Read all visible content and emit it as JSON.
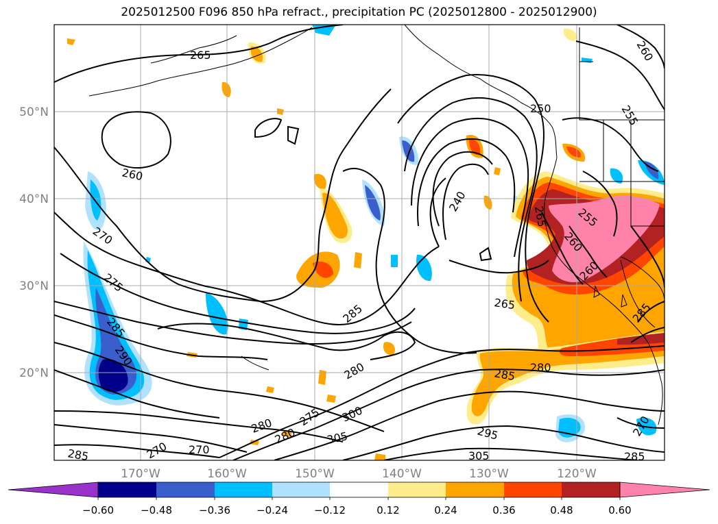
{
  "title": "2025012500 F096 850 hPa refract., precipitation PC (2025012800 - 2025012900)",
  "axes": {
    "lat_labels": [
      "50°N",
      "40°N",
      "30°N",
      "20°N"
    ],
    "lon_labels": [
      "170°W",
      "160°W",
      "150°W",
      "140°W",
      "130°W",
      "120°W"
    ],
    "label_color": "#808080"
  },
  "colorbar": {
    "ticks": [
      "−0.60",
      "−0.48",
      "−0.36",
      "−0.24",
      "−0.12",
      "0.12",
      "0.24",
      "0.36",
      "0.48",
      "0.60"
    ],
    "colors": [
      "#9932cc",
      "#00008b",
      "#3a5fcd",
      "#00bfff",
      "#b0e2ff",
      "#ffffff",
      "#ffec8b",
      "#ffa500",
      "#ff4500",
      "#b22222",
      "#ff82ab"
    ]
  },
  "contours": {
    "labels": [
      "265",
      "260",
      "270",
      "275",
      "285",
      "290",
      "250",
      "255",
      "260",
      "240",
      "255",
      "260",
      "265",
      "285",
      "280",
      "285",
      "280",
      "280",
      "275",
      "300",
      "305",
      "295",
      "305",
      "280",
      "270",
      "270",
      "285",
      "285",
      "285",
      "265",
      "270",
      "260"
    ]
  }
}
